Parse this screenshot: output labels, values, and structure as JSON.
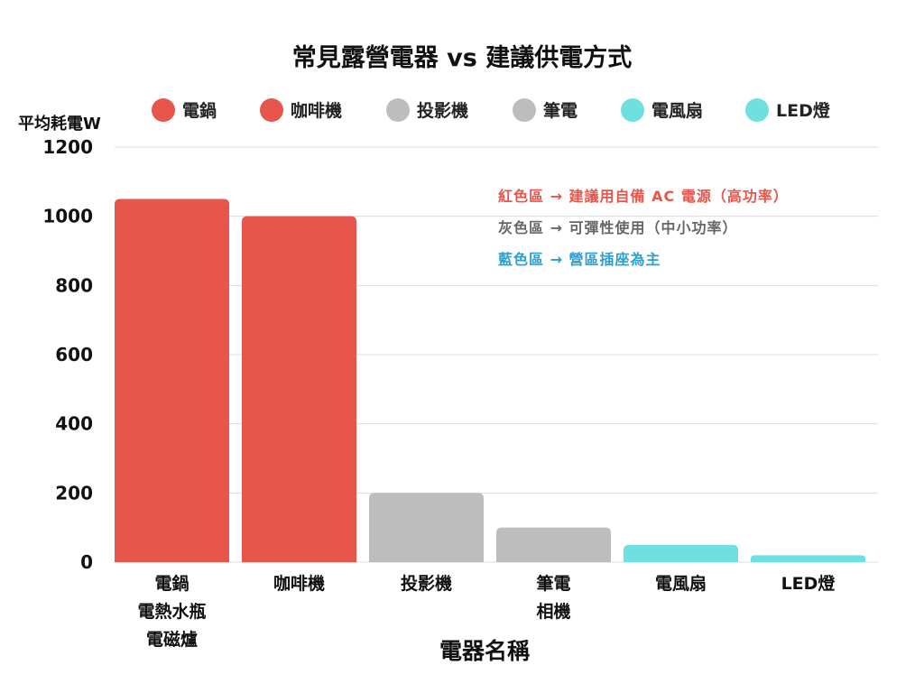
{
  "chart_data": {
    "type": "bar",
    "title": "常見露營電器 vs 建議供電方式",
    "ylabel": "平均耗電W",
    "xlabel": "電器名稱",
    "ylim": [
      0,
      1200
    ],
    "yticks": [
      0,
      200,
      400,
      600,
      800,
      1000,
      1200
    ],
    "grid": true,
    "legend_position": "top",
    "categories": [
      {
        "lines": [
          "電鍋",
          "電熱水瓶",
          "電磁爐"
        ]
      },
      {
        "lines": [
          "咖啡機"
        ]
      },
      {
        "lines": [
          "投影機"
        ]
      },
      {
        "lines": [
          "筆電",
          "相機"
        ]
      },
      {
        "lines": [
          "電風扇"
        ]
      },
      {
        "lines": [
          "LED燈"
        ]
      }
    ],
    "values": [
      1050,
      1000,
      200,
      100,
      50,
      20
    ],
    "bar_colors": [
      "#e8554a",
      "#e8554a",
      "#bdbdbd",
      "#bdbdbd",
      "#6ee0e0",
      "#6ee0e0"
    ],
    "legend": [
      {
        "label": "電鍋",
        "color": "#e8554a"
      },
      {
        "label": "咖啡機",
        "color": "#e8554a"
      },
      {
        "label": "投影機",
        "color": "#bdbdbd"
      },
      {
        "label": "筆電",
        "color": "#bdbdbd"
      },
      {
        "label": "電風扇",
        "color": "#6ee0e0"
      },
      {
        "label": "LED燈",
        "color": "#6ee0e0"
      }
    ],
    "annotations": [
      {
        "text": "紅色區 → 建議用自備 AC 電源（高功率）",
        "color": "#e8554a"
      },
      {
        "text": "灰色區 → 可彈性使用（中小功率）",
        "color": "#666666"
      },
      {
        "text": "藍色區 → 營區插座為主",
        "color": "#2a9fd0"
      }
    ]
  }
}
